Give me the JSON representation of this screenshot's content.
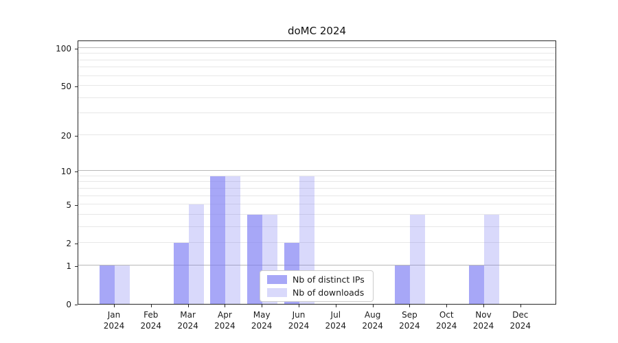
{
  "chart_data": {
    "type": "bar",
    "title": "doMC 2024",
    "categories": [
      "Jan",
      "Feb",
      "Mar",
      "Apr",
      "May",
      "Jun",
      "Jul",
      "Aug",
      "Sep",
      "Oct",
      "Nov",
      "Dec"
    ],
    "x_tick_year": "2024",
    "series": [
      {
        "name": "Nb of distinct IPs",
        "color": "rgba(120,120,242,0.65)",
        "values": [
          1,
          0,
          2,
          9,
          4,
          2,
          0,
          0,
          1,
          0,
          1,
          0
        ]
      },
      {
        "name": "Nb of downloads",
        "color": "rgba(120,120,242,0.28)",
        "values": [
          1,
          0,
          5,
          9,
          4,
          9,
          0,
          0,
          4,
          0,
          4,
          0
        ]
      }
    ],
    "yscale": "log1p",
    "y_ticks": [
      0,
      1,
      2,
      5,
      10,
      20,
      50,
      100
    ],
    "y_major_gridlines": [
      1,
      10,
      100
    ],
    "y_minor_gridlines": [
      2,
      3,
      4,
      5,
      6,
      7,
      8,
      9,
      20,
      30,
      40,
      50,
      60,
      70,
      80,
      90
    ],
    "ylim": [
      0,
      117
    ],
    "grid": true,
    "colors": {
      "major_gridline": "#b8b8b8",
      "minor_gridline": "#e7e7e7",
      "axis": "#262626",
      "text": "#1a1a1a"
    },
    "legend_position": "bottom-center"
  }
}
